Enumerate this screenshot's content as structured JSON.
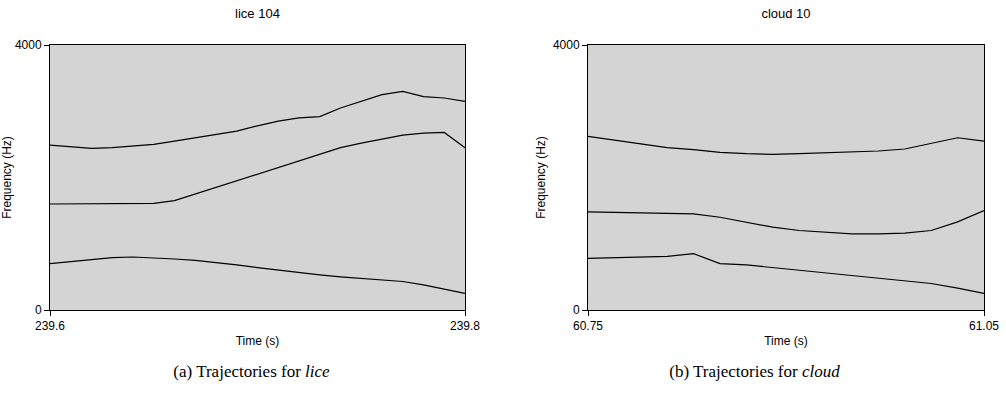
{
  "chart_data": [
    {
      "type": "line",
      "title": "lice 104",
      "x_label": "Time (s)",
      "y_label": "Frequency (Hz)",
      "caption": [
        "(a) Trajectories for",
        "lice"
      ],
      "xlim": [
        239.6,
        239.8
      ],
      "xticks": [
        239.6,
        239.8
      ],
      "ylim": [
        0,
        4000
      ],
      "yticks": [
        0,
        4000
      ],
      "grid": false,
      "x": [
        239.6,
        239.61,
        239.62,
        239.63,
        239.64,
        239.65,
        239.66,
        239.67,
        239.68,
        239.69,
        239.7,
        239.71,
        239.72,
        239.73,
        239.74,
        239.75,
        239.76,
        239.77,
        239.78,
        239.79,
        239.8
      ],
      "series": [
        {
          "color": "#000000",
          "values": [
            700,
            730,
            760,
            790,
            800,
            790,
            770,
            750,
            720,
            680,
            640,
            600,
            560,
            530,
            500,
            480,
            460,
            430,
            380,
            320,
            250
          ]
        },
        {
          "color": "#000000",
          "values": [
            1600,
            1600,
            1600,
            1600,
            1600,
            1610,
            1650,
            1750,
            1850,
            1950,
            2050,
            2150,
            2250,
            2350,
            2450,
            2520,
            2580,
            2640,
            2670,
            2680,
            2450
          ]
        },
        {
          "color": "#000000",
          "values": [
            2490,
            2460,
            2440,
            2450,
            2480,
            2500,
            2550,
            2600,
            2650,
            2700,
            2780,
            2850,
            2900,
            2920,
            3050,
            3150,
            3250,
            3300,
            3220,
            3200,
            3150
          ]
        }
      ]
    },
    {
      "type": "line",
      "title": "cloud 10",
      "x_label": "Time (s)",
      "y_label": "Frequency (Hz)",
      "caption": [
        "(b) Trajectories for",
        "cloud"
      ],
      "xlim": [
        60.75,
        61.05
      ],
      "xticks": [
        60.75,
        61.05
      ],
      "ylim": [
        0,
        4000
      ],
      "yticks": [
        0,
        4000
      ],
      "grid": false,
      "x": [
        60.75,
        60.77,
        60.79,
        60.81,
        60.83,
        60.85,
        60.87,
        60.89,
        60.91,
        60.93,
        60.95,
        60.97,
        60.99,
        61.01,
        61.03,
        61.05
      ],
      "series": [
        {
          "color": "#000000",
          "values": [
            780,
            790,
            800,
            810,
            850,
            700,
            680,
            640,
            600,
            560,
            520,
            480,
            440,
            400,
            330,
            250
          ]
        },
        {
          "color": "#000000",
          "values": [
            1480,
            1470,
            1470,
            1460,
            1450,
            1400,
            1320,
            1250,
            1200,
            1170,
            1150,
            1150,
            1160,
            1200,
            1330,
            1500
          ]
        },
        {
          "color": "#000000",
          "values": [
            2620,
            2560,
            2500,
            2450,
            2420,
            2380,
            2360,
            2350,
            2360,
            2370,
            2380,
            2400,
            2430,
            2520,
            2600,
            2550
          ]
        }
      ]
    }
  ]
}
